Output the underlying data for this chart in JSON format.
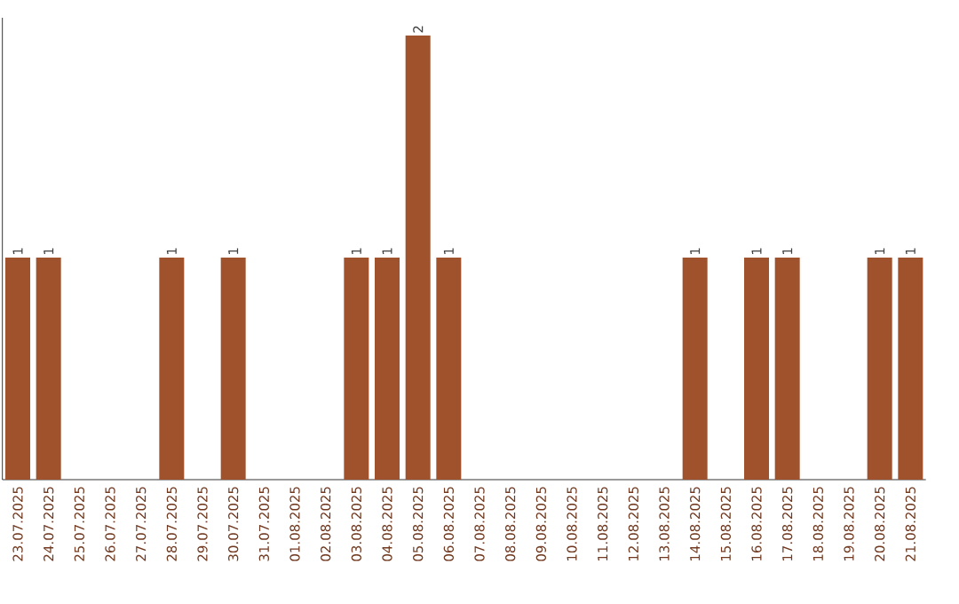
{
  "chart_data": {
    "type": "bar",
    "tick_labels": "x",
    "color": "#a0522d",
    "categories": [
      "23.07.2025",
      "24.07.2025",
      "25.07.2025",
      "26.07.2025",
      "27.07.2025",
      "28.07.2025",
      "29.07.2025",
      "30.07.2025",
      "31.07.2025",
      "01.08.2025",
      "02.08.2025",
      "03.08.2025",
      "04.08.2025",
      "05.08.2025",
      "06.08.2025",
      "07.08.2025",
      "08.08.2025",
      "09.08.2025",
      "10.08.2025",
      "11.08.2025",
      "12.08.2025",
      "13.08.2025",
      "14.08.2025",
      "15.08.2025",
      "16.08.2025",
      "17.08.2025",
      "18.08.2025",
      "19.08.2025",
      "20.08.2025",
      "21.08.2025"
    ],
    "values": [
      1,
      1,
      0,
      0,
      0,
      1,
      0,
      1,
      0,
      0,
      0,
      1,
      1,
      2,
      1,
      0,
      0,
      0,
      0,
      0,
      0,
      0,
      1,
      0,
      1,
      1,
      0,
      0,
      1,
      1
    ],
    "value_labels": [
      "1",
      "1",
      null,
      null,
      null,
      "1",
      null,
      "1",
      null,
      null,
      null,
      "1",
      "1",
      "2",
      "1",
      null,
      null,
      null,
      null,
      null,
      null,
      null,
      "1",
      null,
      "1",
      "1",
      null,
      null,
      "1",
      "1"
    ]
  }
}
